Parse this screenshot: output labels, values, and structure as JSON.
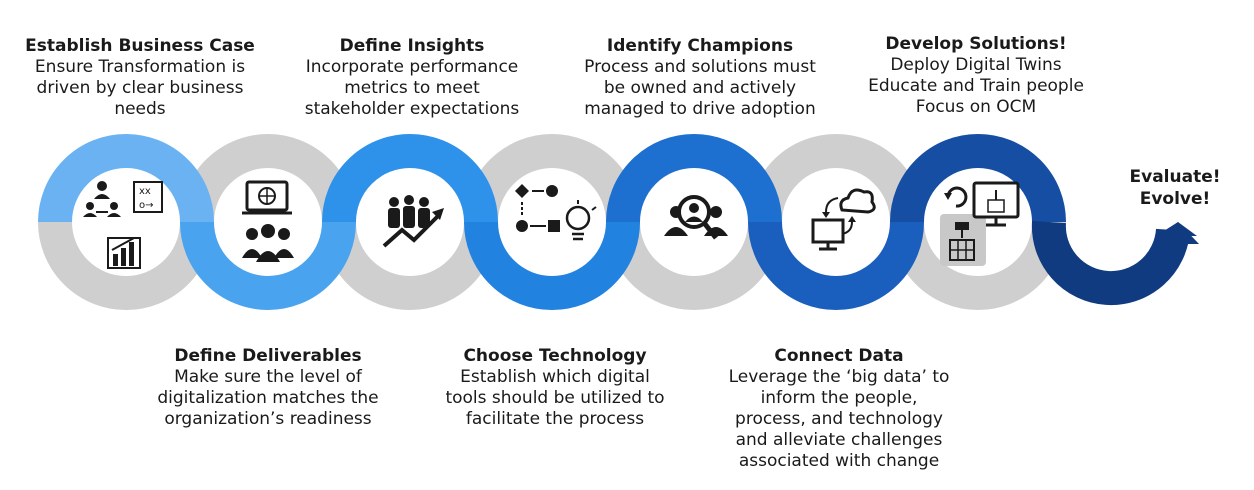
{
  "steps_top": [
    {
      "title": "Establish Business Case",
      "lines": [
        "Ensure Transformation is",
        "driven by clear business",
        "needs"
      ]
    },
    {
      "title": "Define Insights",
      "lines": [
        "Incorporate performance",
        "metrics to meet",
        "stakeholder expectations"
      ]
    },
    {
      "title": "Identify Champions",
      "lines": [
        "Process and solutions must",
        "be owned and actively",
        "managed to drive adoption"
      ]
    },
    {
      "title": "Develop Solutions!",
      "lines": [
        "Deploy Digital Twins",
        "Educate and Train people",
        "Focus on OCM"
      ]
    }
  ],
  "steps_bottom": [
    {
      "title": "Define Deliverables",
      "lines": [
        "Make sure the level of",
        "digitalization matches the",
        "organization’s readiness"
      ]
    },
    {
      "title": "Choose Technology",
      "lines": [
        "Establish which digital",
        "tools should be utilized to",
        "facilitate the process"
      ]
    },
    {
      "title": "Connect Data",
      "lines": [
        "Leverage the ‘big data’ to",
        "inform the people,",
        "process, and technology",
        "and alleviate challenges",
        "associated with change"
      ]
    }
  ],
  "end_label": [
    "Evaluate!",
    "Evolve!"
  ],
  "icons": [
    "team-network-chart-icon",
    "presentation-audience-icon",
    "growth-team-icon",
    "process-idea-icon",
    "search-people-icon",
    "cloud-sync-icon",
    "digital-twin-icon"
  ],
  "colors": {
    "gray": "#cfcfcf",
    "blue_1": "#5aa8ef",
    "blue_2": "#3c9cee",
    "blue_3": "#2f8ae6",
    "blue_4": "#1f6fd0",
    "blue_5": "#1a5fbe",
    "blue_6": "#174fa7",
    "blue_7": "#133f8c",
    "blue_8": "#0f3170"
  }
}
